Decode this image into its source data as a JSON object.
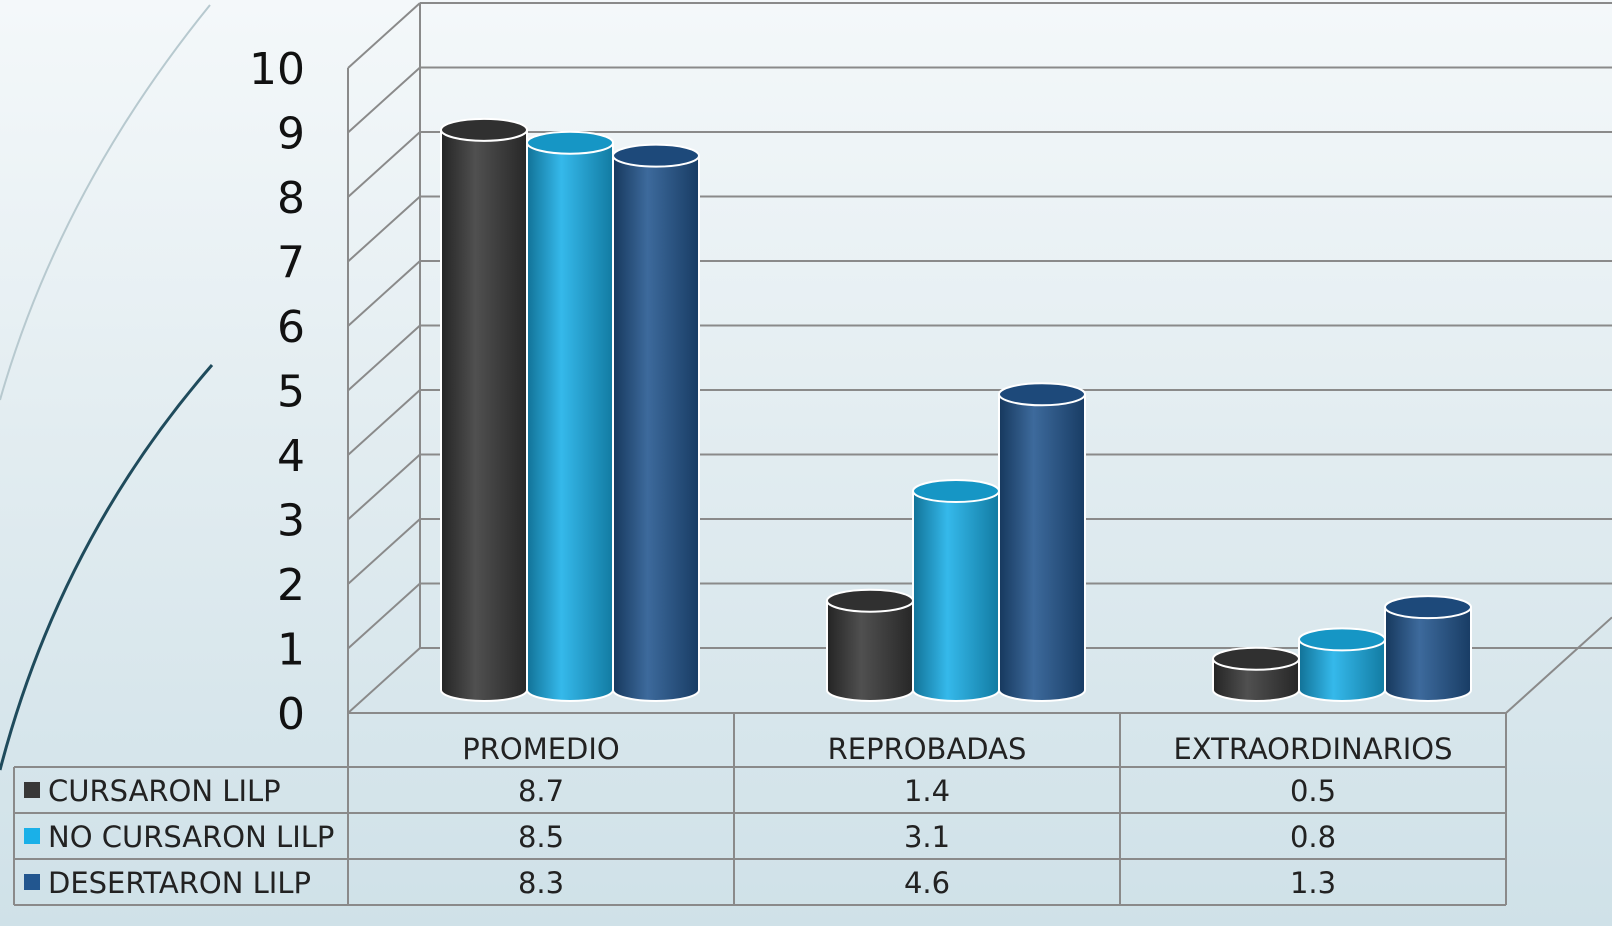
{
  "chart_data": {
    "type": "bar",
    "style": "3d-cylinder",
    "categories": [
      "PROMEDIO",
      "REPROBADAS",
      "EXTRAORDINARIOS"
    ],
    "series": [
      {
        "name": "CURSARON LILP",
        "color": "#383838",
        "values": [
          8.7,
          1.4,
          0.5
        ]
      },
      {
        "name": "NO CURSARON LILP",
        "color": "#1ab0e8",
        "values": [
          8.5,
          3.1,
          0.8
        ]
      },
      {
        "name": "DESERTARON LILP",
        "color": "#22568f",
        "values": [
          8.3,
          4.6,
          1.3
        ]
      }
    ],
    "ylim": [
      0,
      10
    ],
    "yticks": [
      "0",
      "1",
      "2",
      "3",
      "4",
      "5",
      "6",
      "7",
      "8",
      "9",
      "10"
    ],
    "grid": true,
    "legend": "data-table-below",
    "data_table": [
      [
        "8.7",
        "1.4",
        "0.5"
      ],
      [
        "8.5",
        "3.1",
        "0.8"
      ],
      [
        "8.3",
        "4.6",
        "1.3"
      ]
    ]
  }
}
